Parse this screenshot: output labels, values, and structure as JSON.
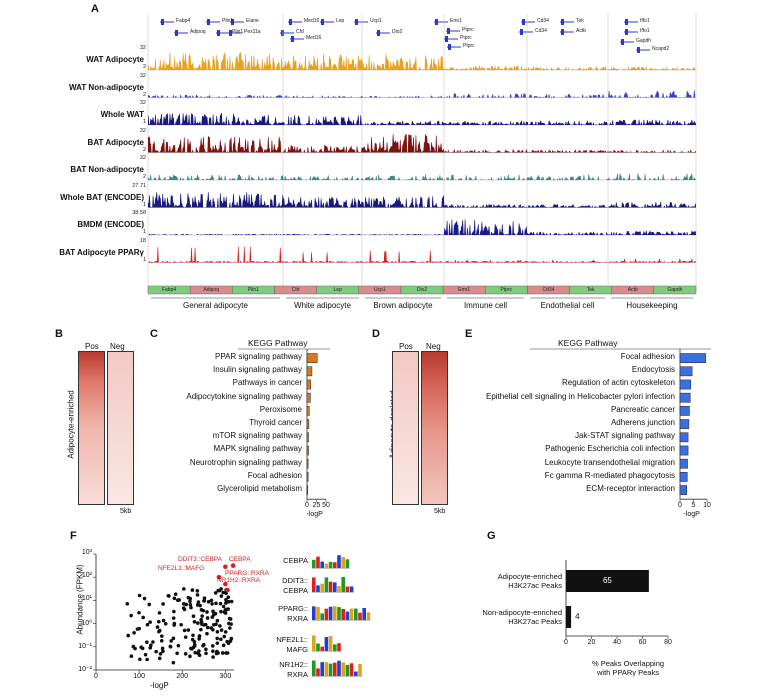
{
  "panelA": {
    "letter": "A",
    "tracks": [
      {
        "label": "WAT Adipocyte",
        "top": "32",
        "bottom": "2",
        "color": "#e8a21f"
      },
      {
        "label": "WAT Non-adipocyte",
        "top": "32",
        "bottom": "2",
        "color": "#3b3bd8"
      },
      {
        "label": "Whole WAT",
        "top": "32",
        "bottom": "1",
        "color": "#1a1a7a"
      },
      {
        "label": "BAT Adipocyte",
        "top": "32",
        "bottom": "2",
        "color": "#7a1410"
      },
      {
        "label": "BAT Non-adipocyte",
        "top": "32",
        "bottom": "2",
        "color": "#3f8a86"
      },
      {
        "label": "Whole BAT (ENCODE)",
        "top": "27.71",
        "bottom": "1",
        "color": "#1a1a7a"
      },
      {
        "label": "BMDM (ENCODE)",
        "top": "38.58",
        "bottom": "1",
        "color": "#1a1a8a"
      },
      {
        "label": "BAT Adipocyte PPARγ",
        "top": "18",
        "bottom": "1",
        "color": "#d42020"
      }
    ],
    "gene_names": [
      [
        "Fabp4",
        "Adipoq",
        "Plin1",
        "Plin1",
        "Elane",
        "Pex11a"
      ],
      [
        "Med16",
        "Cfd",
        "Med16"
      ],
      [
        "Lep"
      ],
      [
        "Ucp1",
        "Dio2"
      ],
      [
        "Emr1",
        "Ptprc",
        "Ptprc",
        "Ptprc"
      ],
      [
        "Cd34",
        "Cd34",
        "Tek",
        "Actb"
      ],
      [
        "Iffo1",
        "Iffo1",
        "Gapdh",
        "Ncapd2"
      ]
    ],
    "bottom_genes": [
      "Fabp4",
      "Adipoq",
      "Plin1",
      "Cfd",
      "Lep",
      "Ucp1",
      "Dio2",
      "Emr1",
      "Ptprc",
      "Cd34",
      "Tek",
      "Actb",
      "Gapdh"
    ],
    "groups": [
      "General adipocyte",
      "White adipocyte",
      "Brown adipocyte",
      "Immune cell",
      "Endothelial cell",
      "Housekeeping"
    ]
  },
  "panelB": {
    "letter": "B",
    "pos": "Pos",
    "neg": "Neg",
    "side": "Adipocyte-enriched",
    "scale": "5kb"
  },
  "panelC": {
    "letter": "C",
    "title": "KEGG Pathway",
    "xlabel": "-logP",
    "ticks": [
      "0",
      "25",
      "50"
    ],
    "color": "#d9781e",
    "items": [
      "PPAR signaling pathway",
      "Insulin signaling pathway",
      "Pathways in cancer",
      "Adipocytokine signaling pathway",
      "Peroxisome",
      "Thyroid cancer",
      "mTOR signaling pathway",
      "MAPK signaling pathway",
      "Neurotrophin signaling pathway",
      "Focal adhesion",
      "Glycerolipid metabolism"
    ]
  },
  "panelD": {
    "letter": "D",
    "pos": "Pos",
    "neg": "Neg",
    "side": "Adipocyte-depleted",
    "scale": "5kb"
  },
  "panelE": {
    "letter": "E",
    "title": "KEGG Pathway",
    "xlabel": "-logP",
    "ticks": [
      "0",
      "5",
      "10"
    ],
    "color": "#3b6ee0",
    "items": [
      "Focal adhesion",
      "Endocytosis",
      "Regulation of actin cytoskeleton",
      "Epithelial cell signaling in Helicobacter pylori infection",
      "Pancreatic cancer",
      "Adherens junction",
      "Jak-STAT signaling pathway",
      "Pathogenic Escherichia coli infection",
      "Leukocyte transendothelial migration",
      "Fc gamma R-mediated phagocytosis",
      "ECM-receptor interaction"
    ]
  },
  "panelF": {
    "letter": "F",
    "ylabel": "Abundance (FPKM)",
    "xlabel": "-logP",
    "xticks": [
      "0",
      "100",
      "200",
      "300"
    ],
    "yticks": [
      "10³",
      "10²",
      "10¹",
      "10⁰",
      "10⁻¹",
      "10⁻²"
    ],
    "labels": [
      "DDIT3::CEBPA",
      "CEBPA",
      "NFE2L1::MAFG",
      "PPARG::RXRA",
      "NR1H2::RXRA"
    ],
    "motifs": [
      {
        "name1": "CEBPA",
        "name2": ""
      },
      {
        "name1": "DDIT3::",
        "name2": "CEBPA"
      },
      {
        "name1": "PPARG::",
        "name2": "RXRA"
      },
      {
        "name1": "NFE2L1::",
        "name2": "MAFG"
      },
      {
        "name1": "NR1H2::",
        "name2": "RXRA"
      }
    ]
  },
  "panelG": {
    "letter": "G",
    "bars": [
      {
        "label1": "Adipocyte-enriched",
        "label2": "H3K27ac Peaks",
        "value": 65
      },
      {
        "label1": "Non-adipocyte-enriched",
        "label2": "H3K27ac Peaks",
        "value": 4
      }
    ],
    "xticks": [
      "0",
      "20",
      "40",
      "60",
      "80"
    ],
    "xlabel1": "% Peaks Overlapping",
    "xlabel2": "with PPARγ Peaks"
  },
  "chart_data": [
    {
      "type": "bar",
      "title": "KEGG Pathway",
      "xlabel": "-logP",
      "orientation": "horizontal",
      "categories": [
        "PPAR signaling pathway",
        "Insulin signaling pathway",
        "Pathways in cancer",
        "Adipocytokine signaling pathway",
        "Peroxisome",
        "Thyroid cancer",
        "mTOR signaling pathway",
        "MAPK signaling pathway",
        "Neurotrophin signaling pathway",
        "Focal adhesion",
        "Glycerolipid metabolism"
      ],
      "values": [
        27,
        13,
        10,
        9,
        6,
        5,
        4,
        4,
        3,
        3,
        2
      ],
      "xlim": [
        0,
        50
      ]
    },
    {
      "type": "bar",
      "title": "KEGG Pathway",
      "xlabel": "-logP",
      "orientation": "horizontal",
      "categories": [
        "Focal adhesion",
        "Endocytosis",
        "Regulation of actin cytoskeleton",
        "Epithelial cell signaling in Helicobacter pylori infection",
        "Pancreatic cancer",
        "Adherens junction",
        "Jak-STAT signaling pathway",
        "Pathogenic Escherichia coli infection",
        "Leukocyte transendothelial migration",
        "Fc gamma R-mediated phagocytosis",
        "ECM-receptor interaction"
      ],
      "values": [
        9.5,
        4.5,
        4,
        3.8,
        3.5,
        3.3,
        3,
        3,
        2.8,
        2.7,
        2.5
      ],
      "xlim": [
        0,
        10
      ]
    },
    {
      "type": "scatter",
      "xlabel": "-logP",
      "ylabel": "Abundance (FPKM)",
      "xlim": [
        0,
        320
      ],
      "ylim_log10": [
        -2,
        3
      ],
      "highlighted": [
        {
          "name": "CEBPA",
          "x": 318,
          "y_log10": 2.5
        },
        {
          "name": "DDIT3::CEBPA",
          "x": 300,
          "y_log10": 2.45
        },
        {
          "name": "NFE2L1::MAFG",
          "x": 285,
          "y_log10": 2.0
        },
        {
          "name": "PPARG::RXRA",
          "x": 300,
          "y_log10": 1.7
        },
        {
          "name": "NR1H2::RXRA",
          "x": 305,
          "y_log10": 1.45
        }
      ]
    },
    {
      "type": "bar",
      "orientation": "horizontal",
      "categories": [
        "Adipocyte-enriched H3K27ac Peaks",
        "Non-adipocyte-enriched H3K27ac Peaks"
      ],
      "values": [
        65,
        4
      ],
      "xlabel": "% Peaks Overlapping with PPARγ Peaks",
      "xlim": [
        0,
        80
      ]
    }
  ]
}
